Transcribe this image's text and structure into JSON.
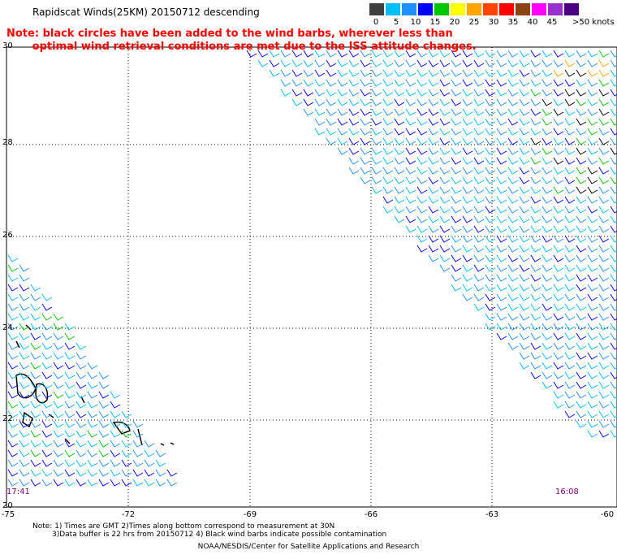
{
  "header": {
    "title": "Rapidscat Winds(25KM) 20150712 descending",
    "note_line1": "Note: black circles have been added to the wind barbs, wherever less than",
    "note_line2": "       optimal wind retrieval conditions are met due to the ISS attitude changes."
  },
  "color_scale": {
    "colors": [
      "#404040",
      "#00bfff",
      "#1e90ff",
      "#0000ff",
      "#00c800",
      "#ffff00",
      "#ffa500",
      "#ff4500",
      "#ff0000",
      "#8b4513",
      "#ff00ff",
      "#9932cc",
      "#4b0082"
    ],
    "labels": [
      "0",
      "5",
      "10",
      "15",
      "20",
      "25",
      "30",
      "35",
      "40",
      "45",
      ">50 knots"
    ]
  },
  "axes": {
    "latitudes": [
      "30",
      "28",
      "26",
      "24",
      "22",
      "20"
    ],
    "longitudes": [
      "-75",
      "-72",
      "-69",
      "-66",
      "-63",
      "-60"
    ]
  },
  "times": {
    "left": "17:41",
    "right": "16:08"
  },
  "footer": {
    "line1": "Note: 1) Times are GMT 2)Times along bottom correspond to measurement at 30N",
    "line2": "3)Data buffer is 22 hrs from 20150712 4) Black wind barbs indicate possible contamination",
    "credit": "NOAA/NESDIS/Center for Satellite Applications and Research"
  }
}
